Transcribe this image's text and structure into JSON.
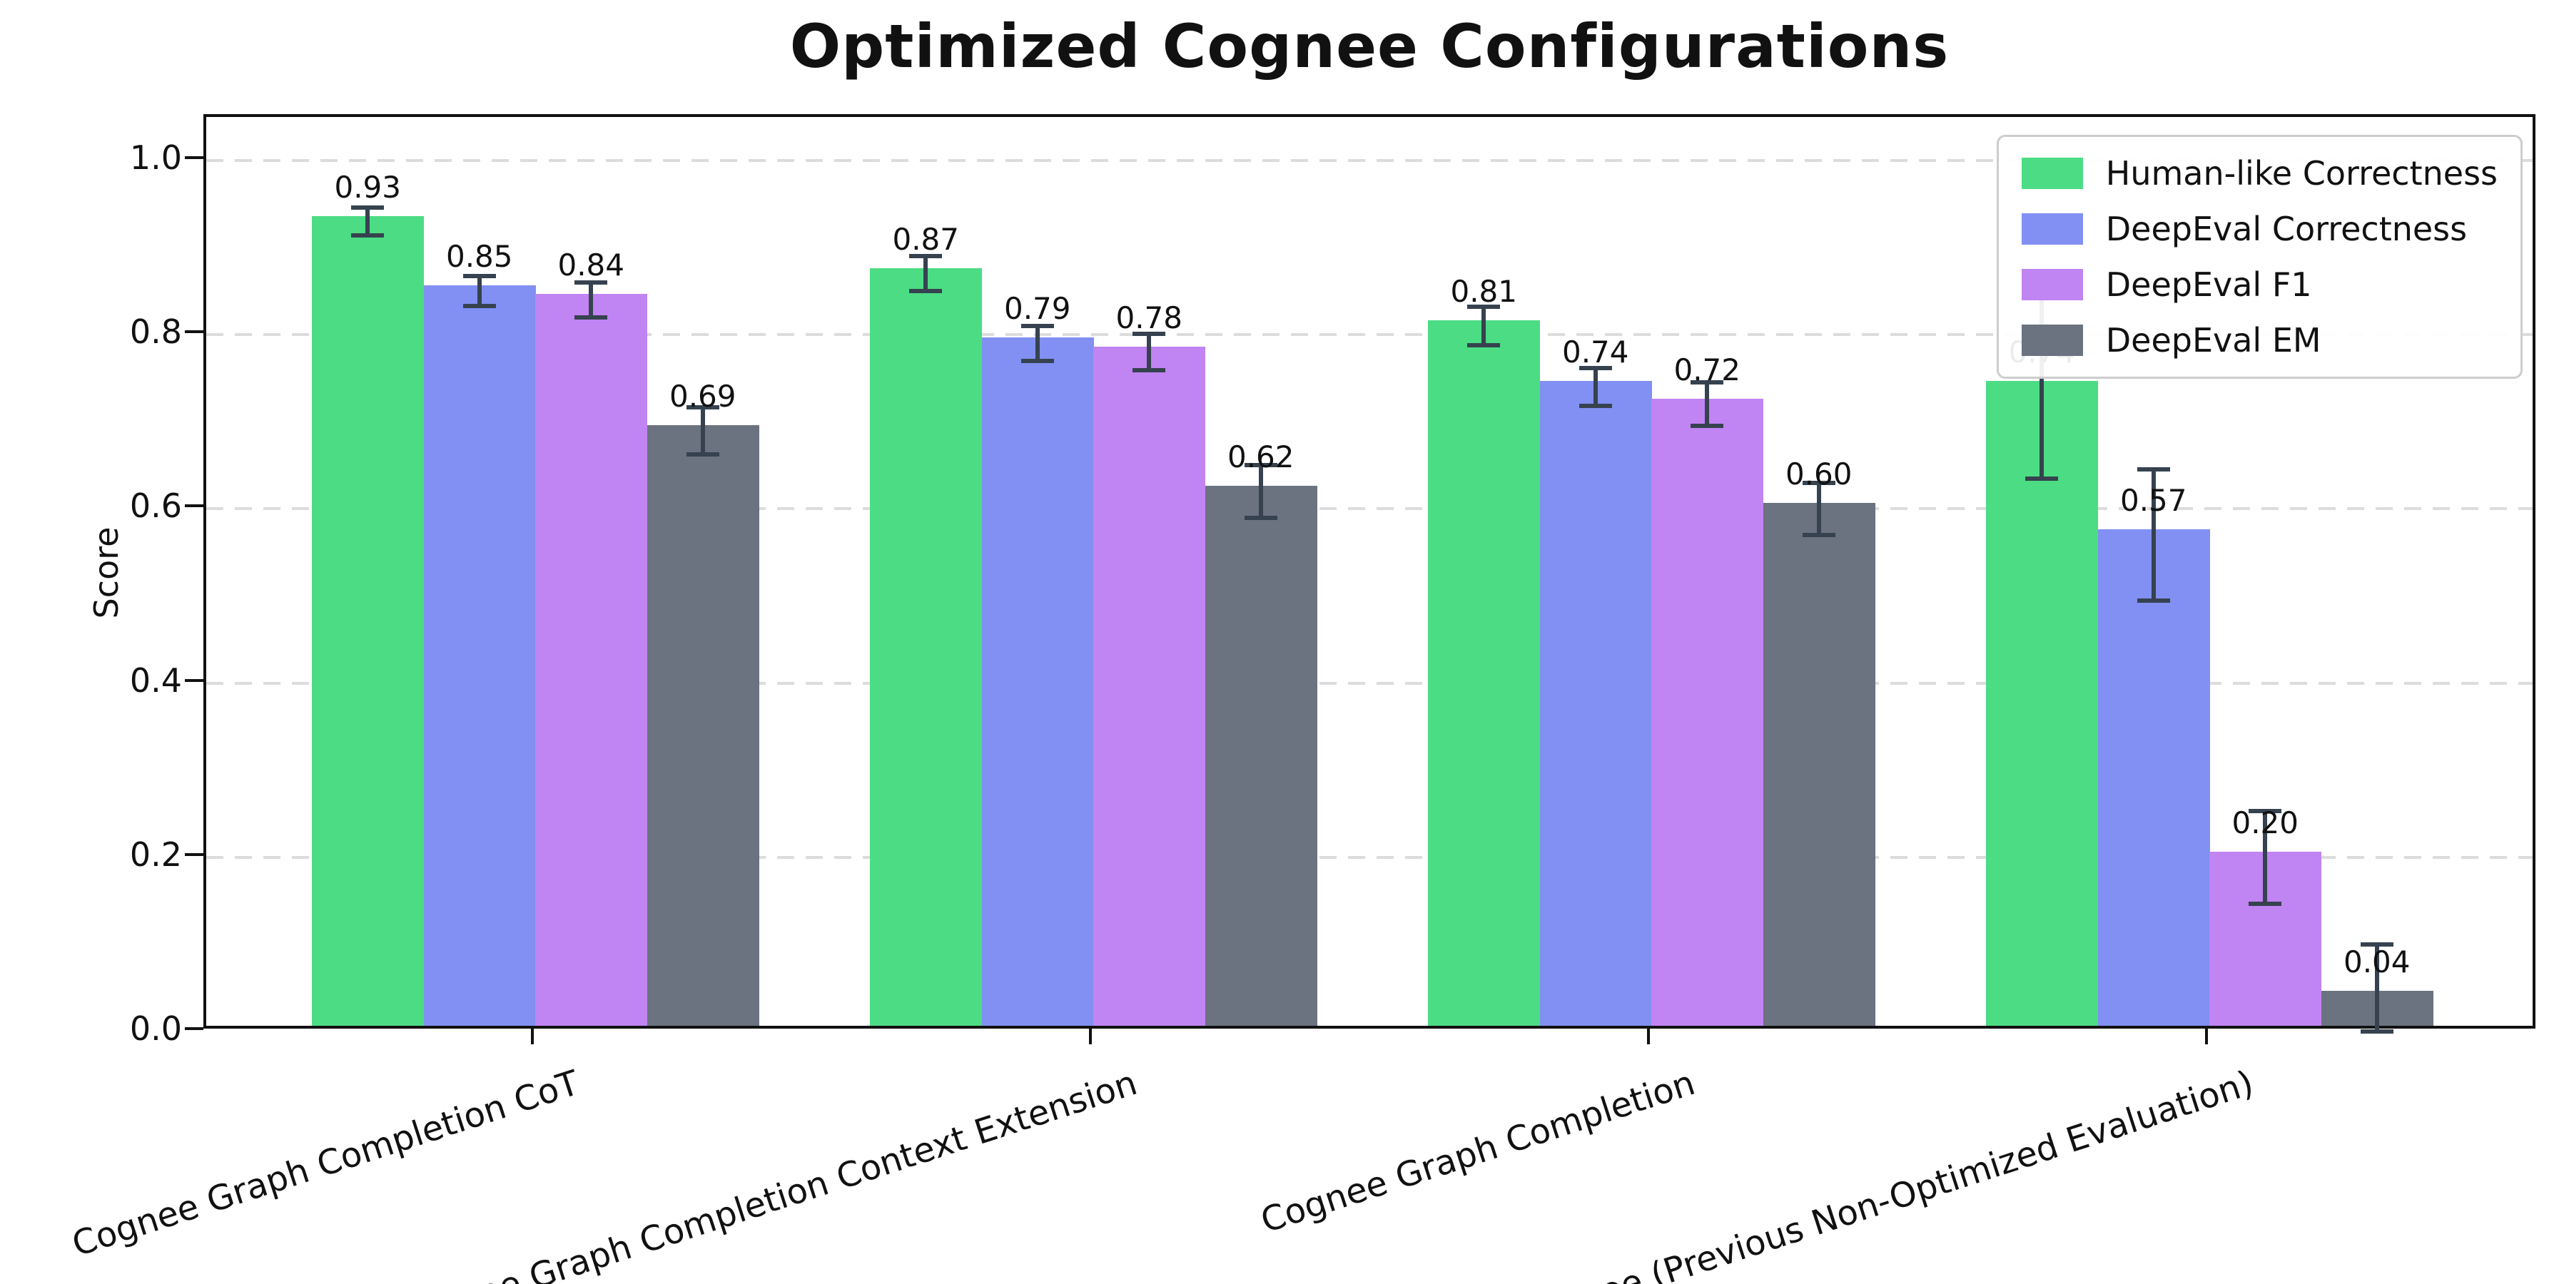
{
  "chart_data": {
    "type": "bar",
    "title": "Optimized Cognee Configurations",
    "xlabel": "",
    "ylabel": "Score",
    "ylim": [
      0,
      1.05
    ],
    "yticks": [
      0.0,
      0.2,
      0.4,
      0.6,
      0.8,
      1.0
    ],
    "grid": "horizontal dashed",
    "legend_position": "upper right",
    "categories": [
      "Cognee Graph Completion CoT",
      "Cognee Graph Completion Context Extension",
      "Cognee Graph Completion",
      "Cognee (Previous Non-Optimized Evaluation)"
    ],
    "series": [
      {
        "name": "Human-like Correctness",
        "color": "#4cdc84",
        "values": [
          0.93,
          0.87,
          0.81,
          0.74
        ],
        "errors": [
          0.016,
          0.02,
          0.022,
          0.105
        ]
      },
      {
        "name": "DeepEval Correctness",
        "color": "#8190f2",
        "values": [
          0.85,
          0.79,
          0.74,
          0.57
        ],
        "errors": [
          0.017,
          0.02,
          0.022,
          0.075
        ]
      },
      {
        "name": "DeepEval F1",
        "color": "#c184f3",
        "values": [
          0.84,
          0.78,
          0.72,
          0.2
        ],
        "errors": [
          0.02,
          0.021,
          0.025,
          0.053
        ]
      },
      {
        "name": "DeepEval EM",
        "color": "#6b7280",
        "values": [
          0.69,
          0.62,
          0.6,
          0.04
        ],
        "errors": [
          0.027,
          0.03,
          0.03,
          0.06
        ]
      }
    ],
    "bar_label_format": "2-decimals",
    "colors": {
      "error_bar": "#36424f",
      "grid": "#dcdcdc",
      "spine": "#111111",
      "text": "#111111",
      "background": "#ffffff",
      "legend_border": "#cdcdcd"
    }
  }
}
